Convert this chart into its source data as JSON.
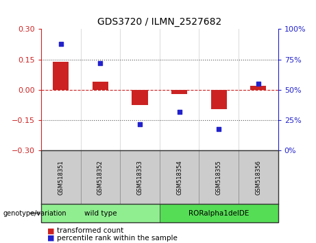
{
  "title": "GDS3720 / ILMN_2527682",
  "samples": [
    "GSM518351",
    "GSM518352",
    "GSM518353",
    "GSM518354",
    "GSM518355",
    "GSM518356"
  ],
  "transformed_count": [
    0.14,
    0.04,
    -0.075,
    -0.02,
    -0.095,
    0.02
  ],
  "percentile_rank": [
    88,
    72,
    22,
    32,
    18,
    55
  ],
  "ylim_left": [
    -0.3,
    0.3
  ],
  "ylim_right": [
    0,
    100
  ],
  "yticks_left": [
    -0.3,
    -0.15,
    0,
    0.15,
    0.3
  ],
  "yticks_right": [
    0,
    25,
    50,
    75,
    100
  ],
  "groups": [
    {
      "label": "wild type",
      "indices": [
        0,
        1,
        2
      ],
      "color": "#90EE90"
    },
    {
      "label": "RORalpha1delDE",
      "indices": [
        3,
        4,
        5
      ],
      "color": "#55DD55"
    }
  ],
  "bar_color": "#CC2222",
  "scatter_color": "#2222CC",
  "zero_line_color": "#CC2222",
  "dotted_line_color": "#555555",
  "legend_labels": [
    "transformed count",
    "percentile rank within the sample"
  ],
  "genotype_label": "genotype/variation",
  "sample_box_color": "#CCCCCC",
  "plot_bg": "#FFFFFF"
}
